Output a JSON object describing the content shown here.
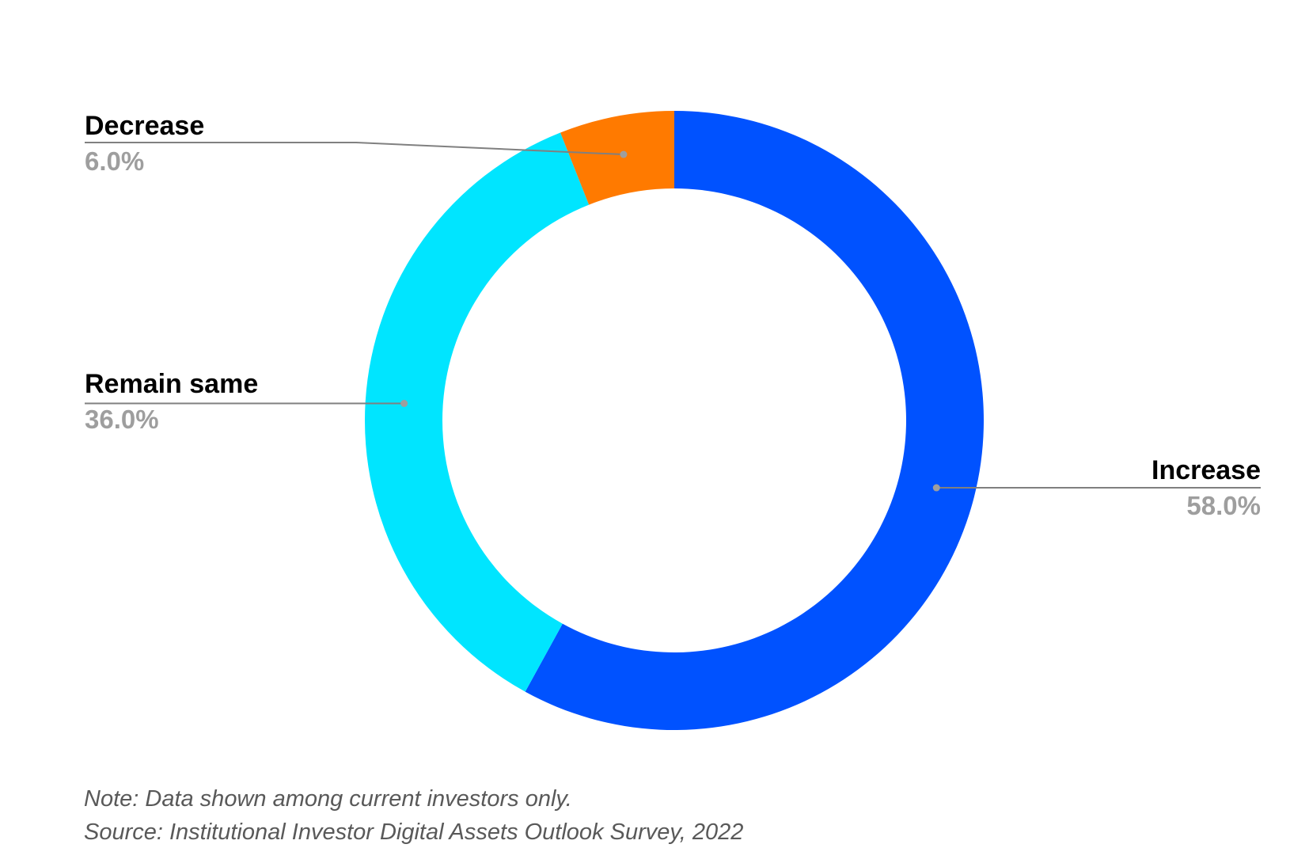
{
  "chart_data": {
    "type": "pie",
    "style": "donut",
    "title": "",
    "categories": [
      "Increase",
      "Remain same",
      "Decrease"
    ],
    "values": [
      58.0,
      36.0,
      6.0
    ],
    "value_labels": [
      "58.0%",
      "36.0%",
      "6.0%"
    ],
    "colors": [
      "#0052ff",
      "#00e5ff",
      "#ff7a00"
    ],
    "leader_color": "#808080",
    "label_placement": "outside with leader lines",
    "start": "top, clockwise"
  },
  "footer": {
    "note": "Note: Data shown among current investors only.",
    "source": "Source: Institutional Investor Digital Assets Outlook Survey, 2022"
  }
}
